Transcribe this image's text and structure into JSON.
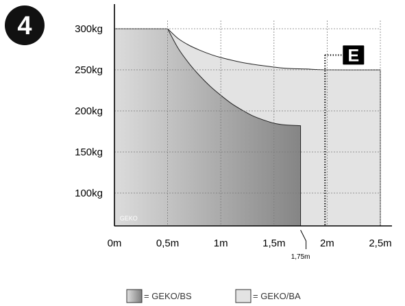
{
  "figure_number": "4",
  "chart_data": {
    "type": "area",
    "x_unit": "m",
    "y_unit": "kg",
    "xlim": [
      0,
      2.5
    ],
    "ylim": [
      60,
      310
    ],
    "grid": true,
    "x_ticks": [
      {
        "value": 0,
        "label": "0m"
      },
      {
        "value": 0.5,
        "label": "0,5m"
      },
      {
        "value": 1,
        "label": "1m"
      },
      {
        "value": 1.5,
        "label": "1,5m"
      },
      {
        "value": 2,
        "label": "2m"
      },
      {
        "value": 2.5,
        "label": "2,5m"
      }
    ],
    "y_ticks": [
      {
        "value": 100,
        "label": "100kg"
      },
      {
        "value": 150,
        "label": "150kg"
      },
      {
        "value": 200,
        "label": "200kg"
      },
      {
        "value": 250,
        "label": "250kg"
      },
      {
        "value": 300,
        "label": "300kg"
      }
    ],
    "series": [
      {
        "name": "GEKO/BA",
        "x": [
          0,
          0.5,
          0.6,
          0.7,
          0.8,
          0.9,
          1.0,
          1.2,
          1.4,
          1.6,
          1.8,
          2.0,
          2.5
        ],
        "values": [
          300,
          300,
          288,
          280,
          274,
          269,
          265,
          259,
          255,
          252,
          251,
          250,
          250
        ]
      },
      {
        "name": "GEKO/BS",
        "x": [
          0,
          0.5,
          0.6,
          0.7,
          0.8,
          0.9,
          1.0,
          1.1,
          1.2,
          1.3,
          1.4,
          1.5,
          1.6,
          1.75
        ],
        "values": [
          300,
          300,
          276,
          258,
          243,
          230,
          219,
          209,
          201,
          194,
          189,
          185,
          183,
          182
        ]
      }
    ],
    "annotations": {
      "marker_175": {
        "x": 1.75,
        "label": "1,75m"
      },
      "dotted_line": {
        "x": 1.98,
        "y_top": 268
      },
      "badge": {
        "label": "E"
      },
      "watermark": "GEKO"
    }
  },
  "legend": [
    {
      "label": "= GEKO/BS",
      "swatch": "gradient-dark"
    },
    {
      "label": "= GEKO/BA",
      "swatch": "light"
    }
  ],
  "colors": {
    "ba_fill": "#e3e3e3",
    "bs_dark": "#858585",
    "bs_light": "#dcdcdc",
    "grid": "#7a7a7a",
    "axis": "#000000"
  }
}
